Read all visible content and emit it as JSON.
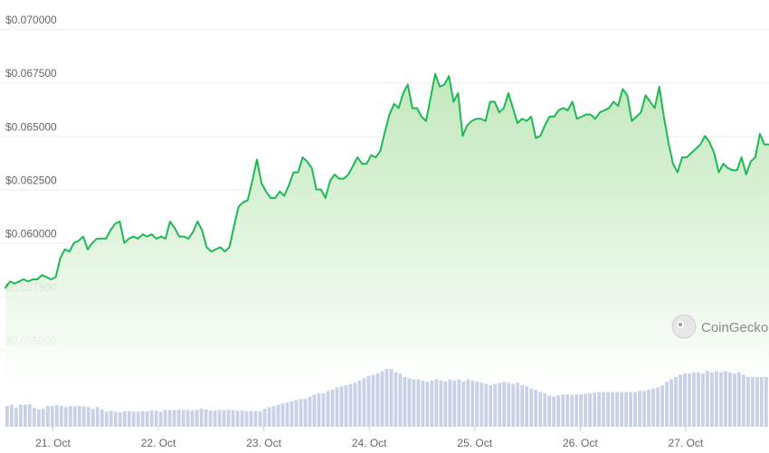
{
  "chart_data": {
    "type": "area",
    "title": "",
    "xlabel": "",
    "ylabel": "",
    "ylim": [
      0.055,
      0.07
    ],
    "y_ticks": [
      0.07,
      0.0675,
      0.065,
      0.0625,
      0.06,
      0.0575,
      0.055
    ],
    "y_tick_labels": [
      "$0.070000",
      "$0.067500",
      "$0.065000",
      "$0.062500",
      "$0.060000",
      "$0.057500",
      "$0.055000"
    ],
    "x_tick_labels": [
      "21. Oct",
      "22. Oct",
      "23. Oct",
      "24. Oct",
      "25. Oct",
      "26. Oct",
      "27. Oct"
    ],
    "x_range_days": [
      20.55,
      27.79
    ],
    "grid": true,
    "legend": "none",
    "colors": {
      "line": "#1db954",
      "fill_top": "#b7e4b0",
      "fill_bottom": "#ffffff",
      "volume": "#c9d1e6"
    },
    "series": [
      {
        "values": [
          0.0579,
          0.0582,
          0.0581,
          0.0582,
          0.0583,
          0.0582,
          0.0583,
          0.0583,
          0.0585,
          0.0584,
          0.0583,
          0.0584,
          0.0593,
          0.0597,
          0.0596,
          0.06,
          0.0601,
          0.0603,
          0.0597,
          0.06,
          0.0602,
          0.0602,
          0.0602,
          0.0606,
          0.0609,
          0.061,
          0.06,
          0.0602,
          0.0603,
          0.0602,
          0.0604,
          0.0603,
          0.0604,
          0.0602,
          0.0603,
          0.0602,
          0.061,
          0.0607,
          0.0603,
          0.0603,
          0.0602,
          0.0605,
          0.061,
          0.0606,
          0.0598,
          0.0596,
          0.0597,
          0.0598,
          0.0596,
          0.0598,
          0.0608,
          0.0617,
          0.0619,
          0.062,
          0.0629,
          0.0639,
          0.0628,
          0.0624,
          0.0621,
          0.0621,
          0.0624,
          0.0622,
          0.0627,
          0.0633,
          0.0633,
          0.064,
          0.0638,
          0.0635,
          0.0625,
          0.0625,
          0.0621,
          0.0629,
          0.0632,
          0.063,
          0.063,
          0.0632,
          0.0636,
          0.064,
          0.0637,
          0.0637,
          0.0641,
          0.064,
          0.0643,
          0.0652,
          0.066,
          0.0665,
          0.0663,
          0.067,
          0.0674,
          0.0663,
          0.0663,
          0.0659,
          0.0657,
          0.0668,
          0.0679,
          0.0673,
          0.0674,
          0.0678,
          0.0666,
          0.067,
          0.065,
          0.0655,
          0.0657,
          0.0658,
          0.0658,
          0.0657,
          0.0666,
          0.0666,
          0.0661,
          0.0663,
          0.067,
          0.0663,
          0.0656,
          0.0658,
          0.0657,
          0.0659,
          0.0649,
          0.065,
          0.0655,
          0.0659,
          0.0659,
          0.0662,
          0.0663,
          0.0662,
          0.0666,
          0.0658,
          0.0659,
          0.066,
          0.066,
          0.0658,
          0.0661,
          0.0662,
          0.0663,
          0.0666,
          0.0664,
          0.0672,
          0.0669,
          0.0657,
          0.0659,
          0.0661,
          0.0669,
          0.0666,
          0.0663,
          0.0673,
          0.0659,
          0.0647,
          0.0637,
          0.0633,
          0.064,
          0.064,
          0.0642,
          0.0644,
          0.0646,
          0.065,
          0.0647,
          0.0642,
          0.0633,
          0.0637,
          0.0635,
          0.0634,
          0.0634,
          0.064,
          0.0632,
          0.0638,
          0.064,
          0.0651,
          0.0646,
          0.0646
        ]
      }
    ],
    "volume": [
      0.36,
      0.38,
      0.33,
      0.38,
      0.38,
      0.39,
      0.33,
      0.3,
      0.31,
      0.36,
      0.36,
      0.38,
      0.36,
      0.34,
      0.36,
      0.35,
      0.36,
      0.35,
      0.34,
      0.31,
      0.34,
      0.3,
      0.26,
      0.28,
      0.26,
      0.25,
      0.27,
      0.27,
      0.26,
      0.26,
      0.27,
      0.27,
      0.28,
      0.28,
      0.26,
      0.29,
      0.29,
      0.29,
      0.3,
      0.29,
      0.29,
      0.28,
      0.29,
      0.31,
      0.3,
      0.28,
      0.28,
      0.29,
      0.29,
      0.3,
      0.29,
      0.28,
      0.28,
      0.27,
      0.27,
      0.27,
      0.27,
      0.31,
      0.34,
      0.36,
      0.38,
      0.4,
      0.42,
      0.44,
      0.46,
      0.48,
      0.48,
      0.52,
      0.56,
      0.58,
      0.58,
      0.62,
      0.64,
      0.68,
      0.7,
      0.72,
      0.74,
      0.76,
      0.8,
      0.84,
      0.88,
      0.9,
      0.92,
      0.96,
      1.0,
      1.0,
      0.94,
      0.92,
      0.86,
      0.84,
      0.82,
      0.82,
      0.8,
      0.78,
      0.8,
      0.82,
      0.8,
      0.78,
      0.82,
      0.8,
      0.82,
      0.78,
      0.82,
      0.8,
      0.78,
      0.76,
      0.74,
      0.72,
      0.74,
      0.76,
      0.78,
      0.76,
      0.74,
      0.76,
      0.72,
      0.7,
      0.66,
      0.64,
      0.6,
      0.58,
      0.54,
      0.52,
      0.54,
      0.56,
      0.56,
      0.55,
      0.56,
      0.56,
      0.57,
      0.58,
      0.59,
      0.6,
      0.6,
      0.6,
      0.6,
      0.6,
      0.6,
      0.6,
      0.6,
      0.6,
      0.62,
      0.62,
      0.64,
      0.66,
      0.68,
      0.72,
      0.78,
      0.82,
      0.86,
      0.9,
      0.92,
      0.92,
      0.94,
      0.94,
      0.92,
      0.96,
      0.94,
      0.96,
      0.94,
      0.96,
      0.94,
      0.92,
      0.94,
      0.9,
      0.86,
      0.86,
      0.86,
      0.86,
      0.86
    ]
  },
  "watermark": {
    "text": "CoinGecko",
    "icon": "gecko-logo-icon"
  }
}
